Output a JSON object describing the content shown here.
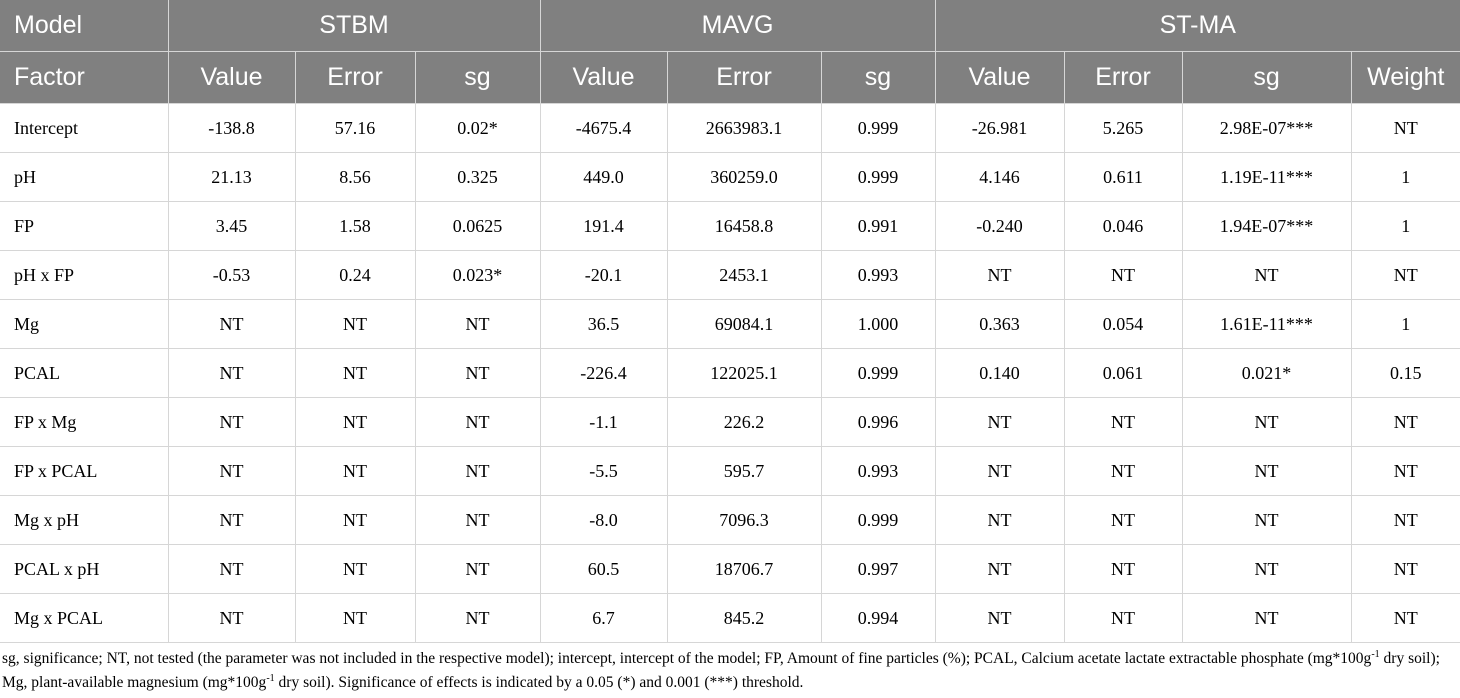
{
  "table": {
    "group_header": {
      "first": "Model",
      "groups": [
        "STBM",
        "MAVG",
        "ST-MA"
      ]
    },
    "column_header": [
      "Factor",
      "Value",
      "Error",
      "sg",
      "Value",
      "Error",
      "sg",
      "Value",
      "Error",
      "sg",
      "Weight"
    ],
    "rows": [
      [
        "Intercept",
        "-138.8",
        "57.16",
        "0.02*",
        "-4675.4",
        "2663983.1",
        "0.999",
        "-26.981",
        "5.265",
        "2.98E-07***",
        "NT"
      ],
      [
        "pH",
        "21.13",
        "8.56",
        "0.325",
        "449.0",
        "360259.0",
        "0.999",
        "4.146",
        "0.611",
        "1.19E-11***",
        "1"
      ],
      [
        "FP",
        "3.45",
        "1.58",
        "0.0625",
        "191.4",
        "16458.8",
        "0.991",
        "-0.240",
        "0.046",
        "1.94E-07***",
        "1"
      ],
      [
        "pH x FP",
        "-0.53",
        "0.24",
        "0.023*",
        "-20.1",
        "2453.1",
        "0.993",
        "NT",
        "NT",
        "NT",
        "NT"
      ],
      [
        "Mg",
        "NT",
        "NT",
        "NT",
        "36.5",
        "69084.1",
        "1.000",
        "0.363",
        "0.054",
        "1.61E-11***",
        "1"
      ],
      [
        "PCAL",
        "NT",
        "NT",
        "NT",
        "-226.4",
        "122025.1",
        "0.999",
        "0.140",
        "0.061",
        "0.021*",
        "0.15"
      ],
      [
        "FP x Mg",
        "NT",
        "NT",
        "NT",
        "-1.1",
        "226.2",
        "0.996",
        "NT",
        "NT",
        "NT",
        "NT"
      ],
      [
        "FP x PCAL",
        "NT",
        "NT",
        "NT",
        "-5.5",
        "595.7",
        "0.993",
        "NT",
        "NT",
        "NT",
        "NT"
      ],
      [
        "Mg x pH",
        "NT",
        "NT",
        "NT",
        "-8.0",
        "7096.3",
        "0.999",
        "NT",
        "NT",
        "NT",
        "NT"
      ],
      [
        "PCAL x pH",
        "NT",
        "NT",
        "NT",
        "60.5",
        "18706.7",
        "0.997",
        "NT",
        "NT",
        "NT",
        "NT"
      ],
      [
        "Mg x PCAL",
        "NT",
        "NT",
        "NT",
        "6.7",
        "845.2",
        "0.994",
        "NT",
        "NT",
        "NT",
        "NT"
      ]
    ]
  },
  "footnote": {
    "p1": "sg, significance; NT, not tested (the parameter was not included in the respective model); intercept, intercept of the model; FP, Amount of fine particles (%); PCAL, Calcium acetate lactate extractable phosphate (mg*100g",
    "sup1": "-1",
    "p2": " dry soil); Mg, plant-available magnesium (mg*100g",
    "sup2": "-1",
    "p3": " dry soil). Significance of effects is indicated by a 0.05 (*) and 0.001 (***) threshold."
  }
}
